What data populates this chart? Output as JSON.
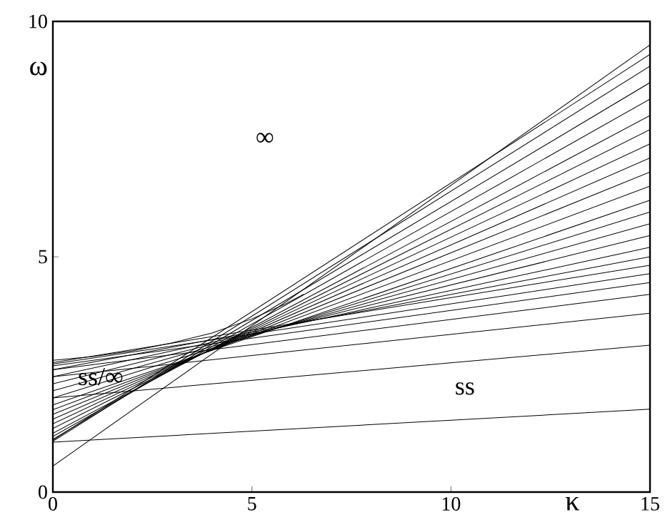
{
  "chart_data": {
    "type": "line",
    "xlabel": "κ",
    "ylabel": "ω",
    "xlim": [
      0,
      15
    ],
    "ylim": [
      0,
      10
    ],
    "xticks": [
      0,
      5,
      10,
      15
    ],
    "yticks": [
      0,
      5,
      10
    ],
    "grid": false,
    "marker": "none",
    "line_style": "solid",
    "annotations": [
      "∞",
      "ss/∞",
      "ss"
    ],
    "series": [
      {
        "color": "#000000",
        "x": [
          0,
          15
        ],
        "values": [
          0.55,
          9.5
        ]
      },
      {
        "color": "#000000",
        "x": [
          0,
          1,
          2,
          3,
          4,
          5,
          5.8,
          6.3
        ],
        "values": [
          2.8,
          2.88,
          3.0,
          3.17,
          3.38,
          3.68,
          3.98,
          4.2
        ]
      },
      {
        "color": "#000000",
        "x": [
          0,
          15
        ],
        "values": [
          1.06,
          1.76
        ]
      },
      {
        "color": "#000000",
        "x": [
          0,
          15
        ],
        "values": [
          2.0,
          3.12
        ]
      },
      {
        "color": "#000000",
        "x": [
          0,
          15
        ],
        "values": [
          2.45,
          3.8
        ]
      },
      {
        "color": "#000000",
        "x": [
          0,
          15
        ],
        "values": [
          2.6,
          4.2
        ]
      },
      {
        "color": "#000000",
        "x": [
          0,
          15
        ],
        "values": [
          2.68,
          4.45
        ]
      },
      {
        "color": "#000000",
        "x": [
          0,
          15
        ],
        "values": [
          2.72,
          4.64
        ]
      },
      {
        "color": "#000000",
        "x": [
          0,
          15
        ],
        "values": [
          2.75,
          4.82
        ]
      },
      {
        "color": "#000000",
        "x": [
          0,
          15
        ],
        "values": [
          2.6,
          5.0
        ]
      },
      {
        "color": "#000000",
        "x": [
          0,
          15
        ],
        "values": [
          2.45,
          5.2
        ]
      },
      {
        "color": "#000000",
        "x": [
          0,
          15
        ],
        "values": [
          2.3,
          5.45
        ]
      },
      {
        "color": "#000000",
        "x": [
          0,
          15
        ],
        "values": [
          2.15,
          5.7
        ]
      },
      {
        "color": "#000000",
        "x": [
          0,
          15
        ],
        "values": [
          2.0,
          5.95
        ]
      },
      {
        "color": "#000000",
        "x": [
          0,
          15
        ],
        "values": [
          1.85,
          6.2
        ]
      },
      {
        "color": "#000000",
        "x": [
          0,
          15
        ],
        "values": [
          1.75,
          6.5
        ]
      },
      {
        "color": "#000000",
        "x": [
          0,
          15
        ],
        "values": [
          1.65,
          6.8
        ]
      },
      {
        "color": "#000000",
        "x": [
          0,
          15
        ],
        "values": [
          1.55,
          7.1
        ]
      },
      {
        "color": "#000000",
        "x": [
          0,
          15
        ],
        "values": [
          1.45,
          7.4
        ]
      },
      {
        "color": "#000000",
        "x": [
          0,
          15
        ],
        "values": [
          1.35,
          7.7
        ]
      },
      {
        "color": "#000000",
        "x": [
          0,
          15
        ],
        "values": [
          1.25,
          8.0
        ]
      },
      {
        "color": "#000000",
        "x": [
          0,
          15
        ],
        "values": [
          1.18,
          8.35
        ]
      },
      {
        "color": "#000000",
        "x": [
          0,
          15
        ],
        "values": [
          1.12,
          8.7
        ]
      },
      {
        "color": "#000000",
        "x": [
          0,
          15
        ],
        "values": [
          1.08,
          9.05
        ]
      },
      {
        "color": "#000000",
        "x": [
          0,
          15
        ],
        "values": [
          1.1,
          9.3
        ]
      }
    ]
  }
}
